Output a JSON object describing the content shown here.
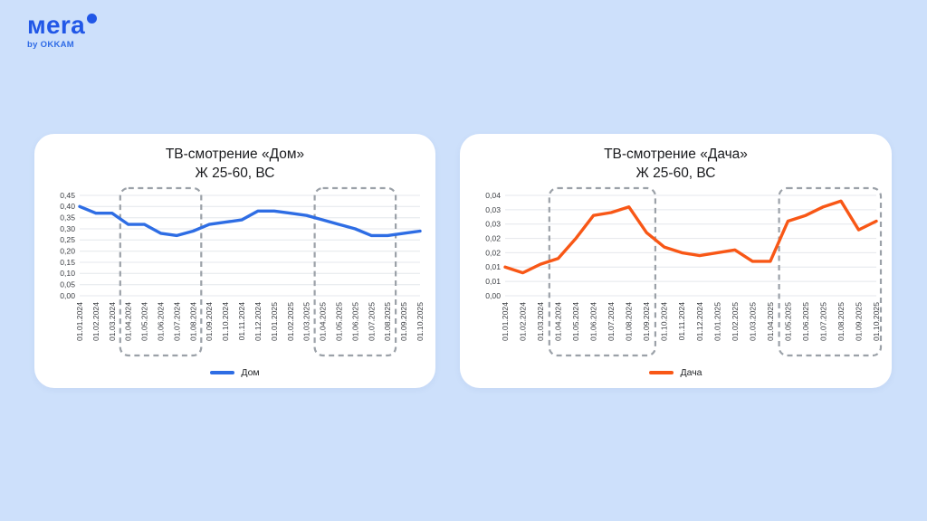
{
  "page": {
    "background_color": "#cde0fb"
  },
  "logo": {
    "brand": "мera",
    "byline": "by OKKAM",
    "color": "#2157e7"
  },
  "chart_data": [
    {
      "type": "line",
      "title": "ТВ-смотрение «Дом»",
      "subtitle": "Ж 25-60, ВС",
      "legend": "Дом",
      "color": "#2e6de4",
      "grid": true,
      "legend_position": "bottom",
      "x": [
        "01.01.2024",
        "01.02.2024",
        "01.03.2024",
        "01.04.2024",
        "01.05.2024",
        "01.06.2024",
        "01.07.2024",
        "01.08.2024",
        "01.09.2024",
        "01.10.2024",
        "01.11.2024",
        "01.12.2024",
        "01.01.2025",
        "01.02.2025",
        "01.03.2025",
        "01.04.2025",
        "01.05.2025",
        "01.06.2025",
        "01.07.2025",
        "01.08.2025",
        "01.09.2025",
        "01.10.2025"
      ],
      "values": [
        0.4,
        0.37,
        0.37,
        0.32,
        0.32,
        0.28,
        0.27,
        0.29,
        0.32,
        0.33,
        0.34,
        0.38,
        0.38,
        0.37,
        0.36,
        0.34,
        0.32,
        0.3,
        0.27,
        0.27,
        0.28,
        0.29
      ],
      "y_min": 0,
      "y_max": 0.45,
      "y_step": 0.05,
      "y_tick_labels": [
        "0,45",
        "0,40",
        "0,35",
        "0,30",
        "0,25",
        "0,20",
        "0,15",
        "0,10",
        "0,05",
        "0,00"
      ],
      "highlight_ranges": [
        {
          "from_index": 2.5,
          "to_index": 7.5
        },
        {
          "from_index": 14.5,
          "to_index": 19.5
        }
      ]
    },
    {
      "type": "line",
      "title": "ТВ-смотрение «Дача»",
      "subtitle": "Ж 25-60, ВС",
      "legend": "Дача",
      "color": "#f85716",
      "grid": true,
      "legend_position": "bottom",
      "x": [
        "01.01.2024",
        "01.02.2024",
        "01.03.2024",
        "01.04.2024",
        "01.05.2024",
        "01.06.2024",
        "01.07.2024",
        "01.08.2024",
        "01.09.2024",
        "01.10.2024",
        "01.11.2024",
        "01.12.2024",
        "01.01.2025",
        "01.02.2025",
        "01.03.2025",
        "01.04.2025",
        "01.05.2025",
        "01.06.2025",
        "01.07.2025",
        "01.08.2025",
        "01.09.2025",
        "01.10.2025"
      ],
      "values": [
        0.01,
        0.008,
        0.011,
        0.013,
        0.02,
        0.028,
        0.029,
        0.031,
        0.022,
        0.017,
        0.015,
        0.014,
        0.015,
        0.016,
        0.012,
        0.012,
        0.026,
        0.028,
        0.031,
        0.033,
        0.023,
        0.026
      ],
      "y_min": 0,
      "y_max": 0.035,
      "y_step": 0.005,
      "y_tick_labels": [
        "0,04",
        "0,03",
        "0,03",
        "0,02",
        "0,02",
        "0,01",
        "0,01",
        "0,00"
      ],
      "highlight_ranges": [
        {
          "from_index": 2.5,
          "to_index": 8.5
        },
        {
          "from_index": 15.5,
          "to_index": 21.45
        }
      ]
    }
  ],
  "style": {
    "grid_color": "#e4e7ec",
    "highlight_box_color": "#9ba1a8",
    "axis_text_color": "#3a3d42"
  }
}
